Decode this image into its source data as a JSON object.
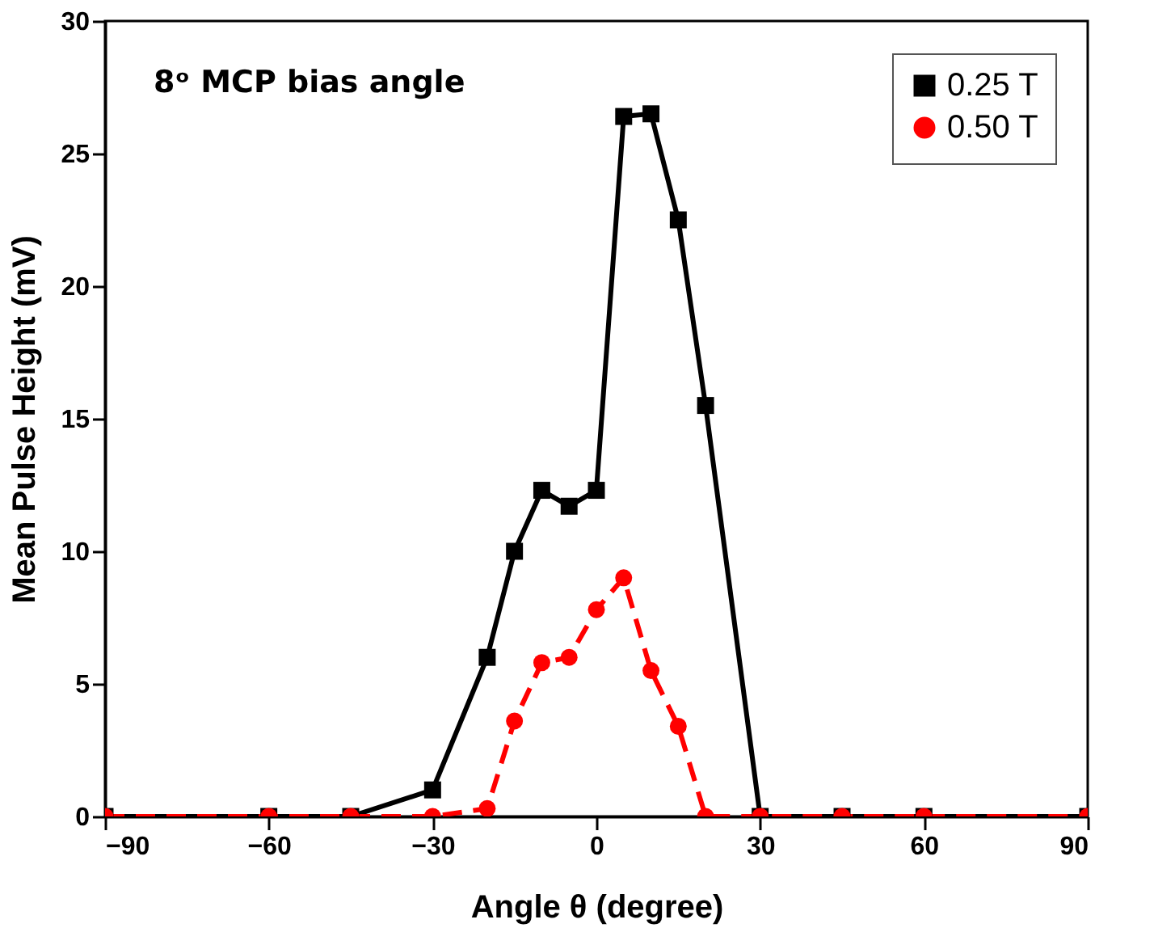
{
  "chart_data": {
    "type": "line",
    "xlabel": "Angle θ (degree)",
    "ylabel": "Mean Pulse Height (mV)",
    "annotations": [
      "8ᵒ MCP bias angle"
    ],
    "xlim": [
      -90,
      90
    ],
    "xticks": [
      -90,
      -60,
      -30,
      0,
      30,
      60,
      90
    ],
    "ylim": [
      0,
      30
    ],
    "yticks": [
      0,
      5,
      10,
      15,
      20,
      25,
      30
    ],
    "grid": false,
    "legend": "top right",
    "series": [
      {
        "name": "0.25 T",
        "color": "#000000",
        "marker": "square",
        "line_style": "solid",
        "x": [
          -90,
          -60,
          -45,
          -30,
          -20,
          -15,
          -10,
          -5,
          0,
          5,
          10,
          15,
          20,
          30,
          45,
          60,
          90
        ],
        "values": [
          0,
          0,
          0,
          1.0,
          6.0,
          10.0,
          12.3,
          11.7,
          12.3,
          26.4,
          26.5,
          22.5,
          15.5,
          0,
          0,
          0,
          0
        ]
      },
      {
        "name": "0.50 T",
        "color": "#ff0000",
        "marker": "circle",
        "line_style": "dashed",
        "x": [
          -90,
          -60,
          -45,
          -30,
          -20,
          -15,
          -10,
          -5,
          0,
          5,
          10,
          15,
          20,
          30,
          45,
          60,
          90
        ],
        "values": [
          0,
          0,
          0,
          0,
          0.3,
          3.6,
          5.8,
          6.0,
          7.8,
          9.0,
          5.5,
          3.4,
          0,
          0,
          0,
          0,
          0
        ]
      }
    ]
  }
}
